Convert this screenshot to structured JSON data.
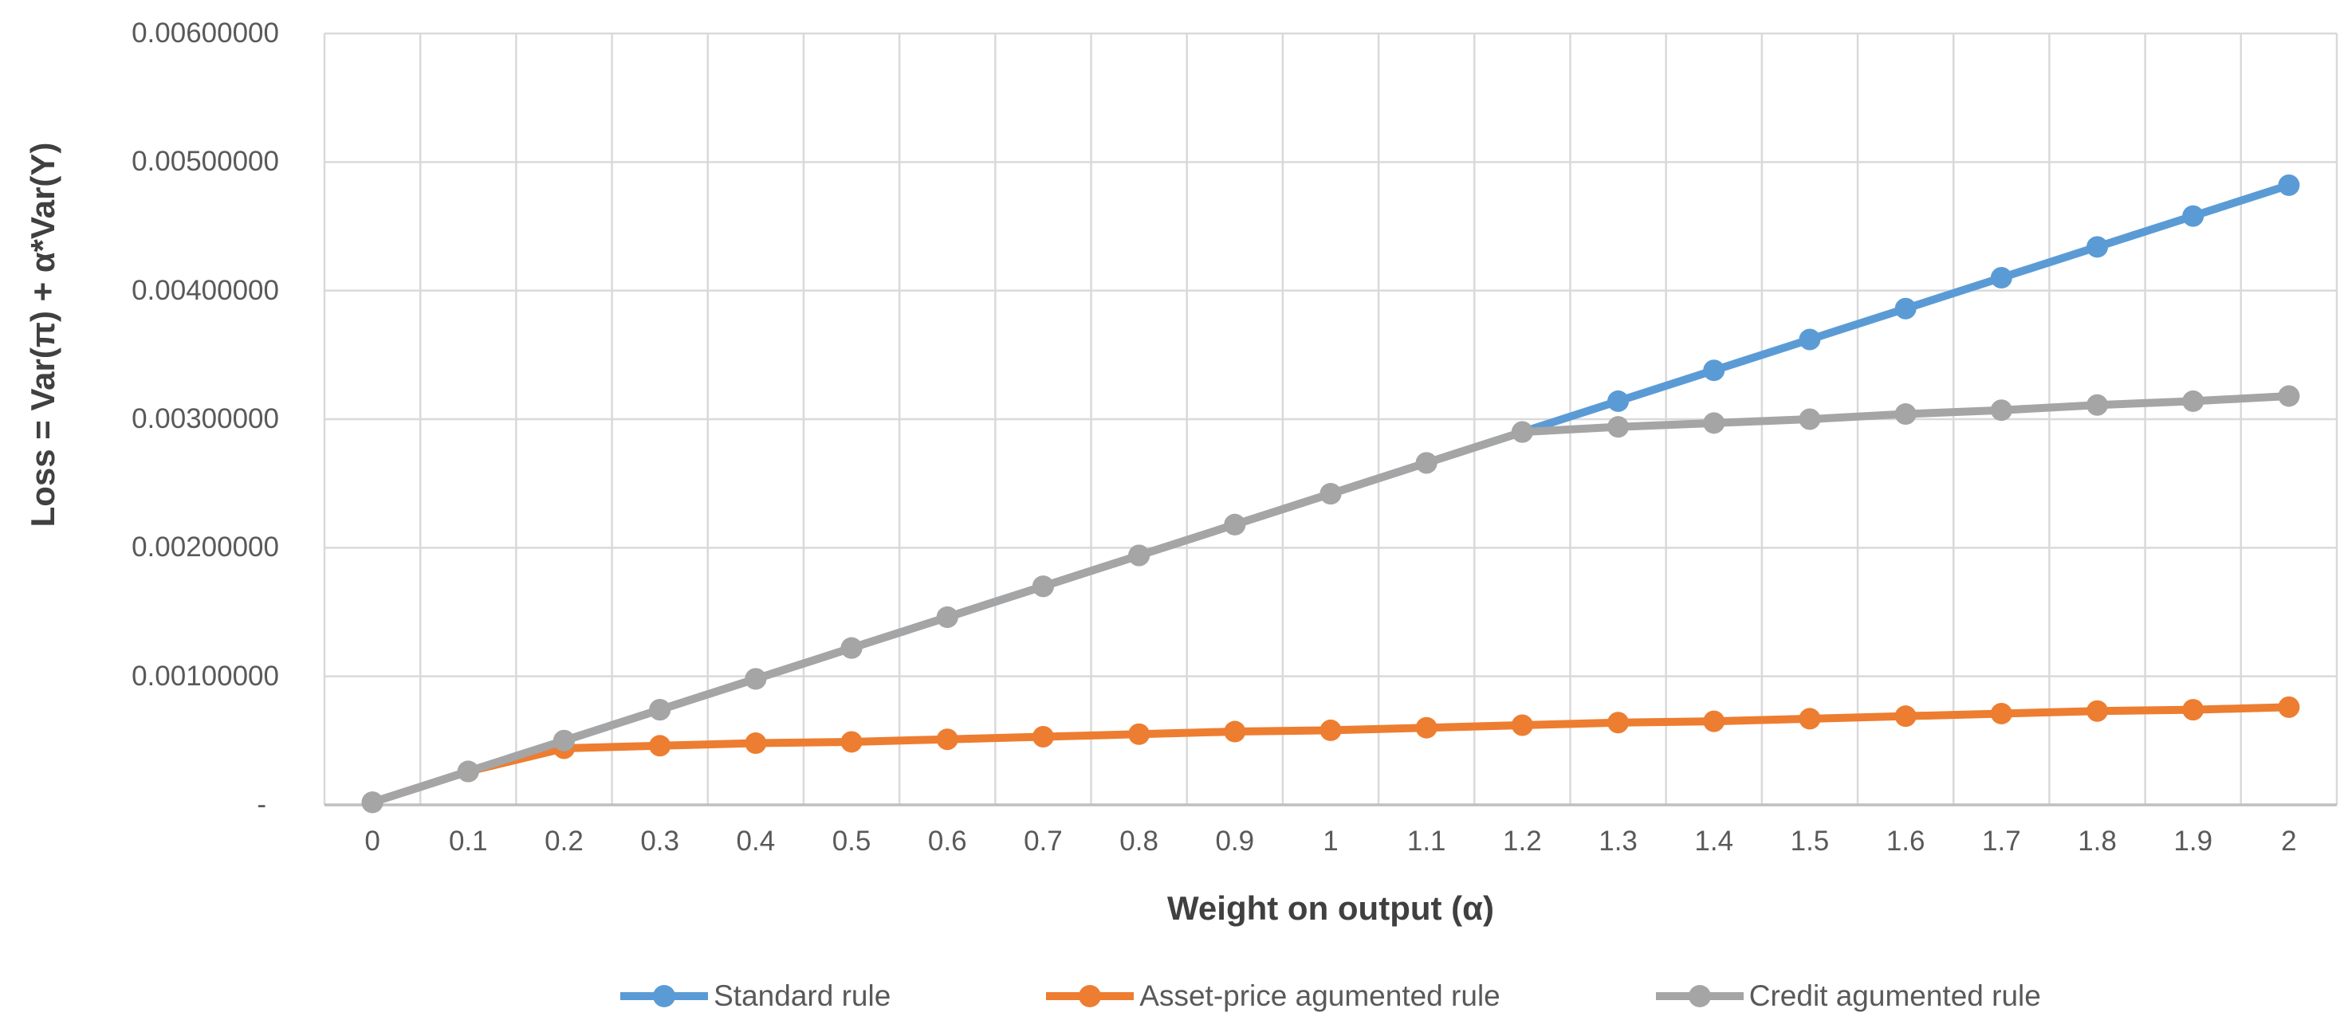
{
  "chart_data": {
    "type": "line",
    "title": "",
    "xlabel": "Weight on output (α)",
    "ylabel": "Loss = Var(π) + α*Var(Y)",
    "categories": [
      "0",
      "0.1",
      "0.2",
      "0.3",
      "0.4",
      "0.5",
      "0.6",
      "0.7",
      "0.8",
      "0.9",
      "1",
      "1.1",
      "1.2",
      "1.3",
      "1.4",
      "1.5",
      "1.6",
      "1.7",
      "1.8",
      "1.9",
      "2"
    ],
    "series": [
      {
        "name": "Standard rule",
        "color": "#5B9BD5",
        "values": [
          2e-05,
          0.00026,
          0.0005,
          0.00074,
          0.00098,
          0.00122,
          0.00146,
          0.0017,
          0.00194,
          0.00218,
          0.00242,
          0.00266,
          0.0029,
          0.00314,
          0.00338,
          0.00362,
          0.00386,
          0.0041,
          0.00434,
          0.00458,
          0.00482
        ]
      },
      {
        "name": "Asset-price agumented rule",
        "color": "#ED7D31",
        "values": [
          2e-05,
          0.00026,
          0.00044,
          0.00046,
          0.00048,
          0.00049,
          0.00051,
          0.00053,
          0.00055,
          0.00057,
          0.00058,
          0.0006,
          0.00062,
          0.00064,
          0.00065,
          0.00067,
          0.00069,
          0.00071,
          0.00073,
          0.00074,
          0.00076
        ]
      },
      {
        "name": "Credit agumented rule",
        "color": "#A5A5A5",
        "values": [
          2e-05,
          0.00026,
          0.0005,
          0.00074,
          0.00098,
          0.00122,
          0.00146,
          0.0017,
          0.00194,
          0.00218,
          0.00242,
          0.00266,
          0.0029,
          0.00294,
          0.00297,
          0.003,
          0.00304,
          0.00307,
          0.00311,
          0.00314,
          0.00318
        ]
      }
    ],
    "y_ticks": [
      {
        "label": "0.00600000",
        "value": 0.006
      },
      {
        "label": "0.00500000",
        "value": 0.005
      },
      {
        "label": "0.00400000",
        "value": 0.004
      },
      {
        "label": "0.00300000",
        "value": 0.003
      },
      {
        "label": "0.00200000",
        "value": 0.002
      },
      {
        "label": "0.00100000",
        "value": 0.001
      },
      {
        "label": "-",
        "value": 0
      }
    ],
    "ylim": [
      0,
      0.006
    ],
    "grid": "both",
    "legend_position": "bottom",
    "gridline_color": "#D9D9D9",
    "axis_line_color": "#BFBFBF",
    "tick_label_color": "#595959",
    "axis_title_color": "#404040",
    "marker": "circle"
  }
}
